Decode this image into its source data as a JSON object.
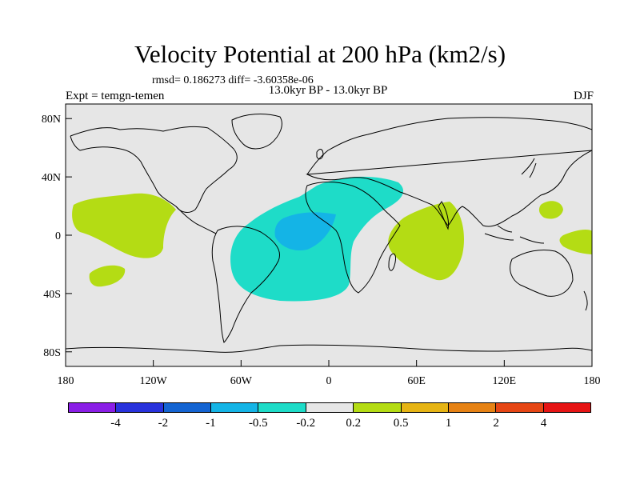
{
  "title": "Velocity Potential at 200 hPa (km2/s)",
  "stats": "rmsd= 0.186273 diff= -3.60358e-06",
  "experiment": "Expt = temgn-temen",
  "period": "13.0kyr BP - 13.0kyr BP",
  "season": "DJF",
  "map": {
    "lon_range": [
      -180,
      180
    ],
    "lat_range": [
      -90,
      90
    ],
    "x_ticks": [
      {
        "label": "180",
        "value": -180
      },
      {
        "label": "120W",
        "value": -120
      },
      {
        "label": "60W",
        "value": -60
      },
      {
        "label": "0",
        "value": 0
      },
      {
        "label": "60E",
        "value": 60
      },
      {
        "label": "120E",
        "value": 120
      },
      {
        "label": "180",
        "value": 180
      }
    ],
    "y_ticks": [
      {
        "label": "80N",
        "value": 80
      },
      {
        "label": "40N",
        "value": 40
      },
      {
        "label": "0",
        "value": 0
      },
      {
        "label": "40S",
        "value": -40
      },
      {
        "label": "80S",
        "value": -80
      }
    ],
    "background_color": "#e6e6e6"
  },
  "colorbar": {
    "colors": [
      "#8a1ee6",
      "#2832dc",
      "#1464d2",
      "#14b4e6",
      "#1edcc8",
      "#e6e6e6",
      "#b4dc14",
      "#e6b414",
      "#e68214",
      "#e64614",
      "#e61414"
    ],
    "labels": [
      "-4",
      "-2",
      "-1",
      "-0.5",
      "-0.2",
      "0.2",
      "0.5",
      "1",
      "2",
      "4"
    ]
  },
  "anomalies": [
    {
      "name": "anomaly-atlantic-africa",
      "level": "-0.5 to -0.2",
      "color": "#1edcc8",
      "center_lon": -12,
      "center_lat": 0
    },
    {
      "name": "anomaly-atlantic-core",
      "level": "-1 to -0.5",
      "color": "#14b4e6",
      "center_lon": -27,
      "center_lat": 2
    },
    {
      "name": "anomaly-indian-ocean",
      "level": "0.2 to 0.5",
      "color": "#b4dc14",
      "center_lon": 67,
      "center_lat": -5
    },
    {
      "name": "anomaly-north-pacific",
      "level": "0.2 to 0.5",
      "color": "#b4dc14",
      "center_lon": -148,
      "center_lat": 8
    },
    {
      "name": "anomaly-south-pacific",
      "level": "0.2 to 0.5",
      "color": "#b4dc14",
      "center_lon": -163,
      "center_lat": -30
    },
    {
      "name": "anomaly-west-pacific-north",
      "level": "0.2 to 0.5",
      "color": "#b4dc14",
      "center_lon": 148,
      "center_lat": 17
    },
    {
      "name": "anomaly-west-pacific-south",
      "level": "0.2 to 0.5",
      "color": "#b4dc14",
      "center_lon": 170,
      "center_lat": -5
    }
  ]
}
